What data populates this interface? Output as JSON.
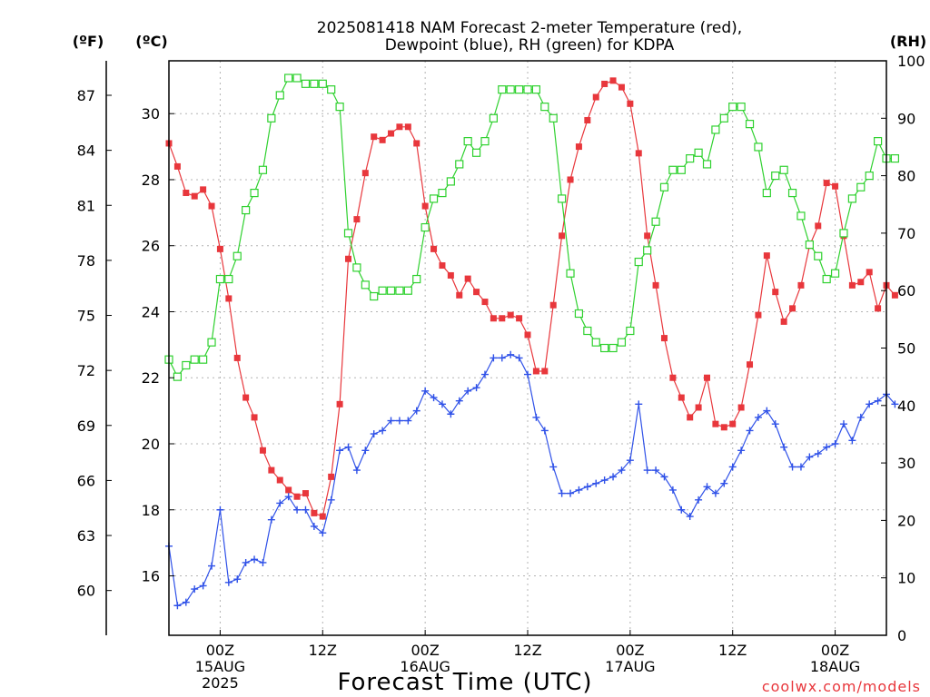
{
  "title_line1": "2025081418 NAM Forecast 2-meter Temperature (red),",
  "title_line2": "Dewpoint (blue), RH (green) for KDPA",
  "axis_f_label": "(ºF)",
  "axis_c_label": "(ºC)",
  "axis_rh_label": "(RH)",
  "xlabel": "Forecast Time (UTC)",
  "watermark": "coolwx.com/models",
  "colors": {
    "temperature": "#e8373c",
    "dewpoint": "#2f51e8",
    "rh": "#2fd12f",
    "grid": "#b4b4b4"
  },
  "chart_data": {
    "type": "line",
    "x_unit": "hours since 2025-08-14 18Z",
    "x_range": [
      0,
      84
    ],
    "x_ticks": [
      {
        "x": 6,
        "lines": [
          "00Z",
          "15AUG",
          "2025"
        ]
      },
      {
        "x": 18,
        "lines": [
          "12Z"
        ]
      },
      {
        "x": 30,
        "lines": [
          "00Z",
          "16AUG"
        ]
      },
      {
        "x": 42,
        "lines": [
          "12Z"
        ]
      },
      {
        "x": 54,
        "lines": [
          "00Z",
          "17AUG"
        ]
      },
      {
        "x": 66,
        "lines": [
          "12Z"
        ]
      },
      {
        "x": 78,
        "lines": [
          "00Z",
          "18AUG"
        ]
      }
    ],
    "y_celsius": {
      "range": [
        14.2,
        31.6
      ],
      "ticks": [
        16,
        18,
        20,
        22,
        24,
        26,
        28,
        30
      ]
    },
    "y_fahrenheit": {
      "ticks": [
        60,
        63,
        66,
        69,
        72,
        75,
        78,
        81,
        84,
        87
      ]
    },
    "y_rh": {
      "range": [
        0,
        100
      ],
      "ticks": [
        0,
        10,
        20,
        30,
        40,
        50,
        60,
        70,
        80,
        90,
        100
      ]
    },
    "series": [
      {
        "marker": "filled-square",
        "unit": "C",
        "values": [
          29.1,
          28.4,
          27.6,
          27.5,
          27.7,
          27.2,
          25.9,
          24.4,
          22.6,
          21.4,
          20.8,
          19.8,
          19.2,
          18.9,
          18.6,
          18.4,
          18.5,
          17.9,
          17.8,
          19.0,
          21.2,
          25.6,
          26.8,
          28.2,
          29.3,
          29.2,
          29.4,
          29.6,
          29.6,
          29.1,
          27.2,
          25.9,
          25.4,
          25.1,
          24.5,
          25.0,
          24.6,
          24.3,
          23.8,
          23.8,
          23.9,
          23.8,
          23.3,
          22.2,
          22.2,
          24.2,
          26.3,
          28.0,
          29.0,
          29.8,
          30.5,
          30.9,
          31.0,
          30.8,
          30.3,
          28.8,
          26.3,
          24.8,
          23.2,
          22.0,
          21.4,
          20.8,
          21.1,
          22.0,
          20.6,
          20.5,
          20.6,
          21.1,
          22.4,
          23.9,
          25.7,
          24.6,
          23.7,
          24.1,
          24.8,
          26.0,
          26.6,
          27.9,
          27.8,
          26.3,
          24.8,
          24.9,
          25.2,
          24.1,
          24.8,
          24.5
        ]
      },
      {
        "marker": "plus",
        "unit": "C",
        "values": [
          16.9,
          15.1,
          15.2,
          15.6,
          15.7,
          16.3,
          18.0,
          15.8,
          15.9,
          16.4,
          16.5,
          16.4,
          17.7,
          18.2,
          18.4,
          18.0,
          18.0,
          17.5,
          17.3,
          18.3,
          19.8,
          19.9,
          19.2,
          19.8,
          20.3,
          20.4,
          20.7,
          20.7,
          20.7,
          21.0,
          21.6,
          21.4,
          21.2,
          20.9,
          21.3,
          21.6,
          21.7,
          22.1,
          22.6,
          22.6,
          22.7,
          22.6,
          22.1,
          20.8,
          20.4,
          19.3,
          18.5,
          18.5,
          18.6,
          18.7,
          18.8,
          18.9,
          19.0,
          19.2,
          19.5,
          21.2,
          19.2,
          19.2,
          19.0,
          18.6,
          18.0,
          17.8,
          18.3,
          18.7,
          18.5,
          18.8,
          19.3,
          19.8,
          20.4,
          20.8,
          21.0,
          20.6,
          19.9,
          19.3,
          19.3,
          19.6,
          19.7,
          19.9,
          20.0,
          20.6,
          20.1,
          20.8,
          21.2,
          21.3,
          21.5,
          21.2
        ]
      },
      {
        "marker": "open-square",
        "unit": "RH%",
        "values": [
          48,
          45,
          47,
          48,
          48,
          51,
          62,
          62,
          66,
          74,
          77,
          81,
          90,
          94,
          97,
          97,
          96,
          96,
          96,
          95,
          92,
          70,
          64,
          61,
          59,
          60,
          60,
          60,
          60,
          62,
          71,
          76,
          77,
          79,
          82,
          86,
          84,
          86,
          90,
          95,
          95,
          95,
          95,
          95,
          92,
          90,
          76,
          63,
          56,
          53,
          51,
          50,
          50,
          51,
          53,
          65,
          67,
          72,
          78,
          81,
          81,
          83,
          84,
          82,
          88,
          90,
          92,
          92,
          89,
          85,
          77,
          80,
          81,
          77,
          73,
          68,
          66,
          62,
          63,
          70,
          76,
          78,
          80,
          86,
          83,
          83
        ]
      }
    ]
  }
}
